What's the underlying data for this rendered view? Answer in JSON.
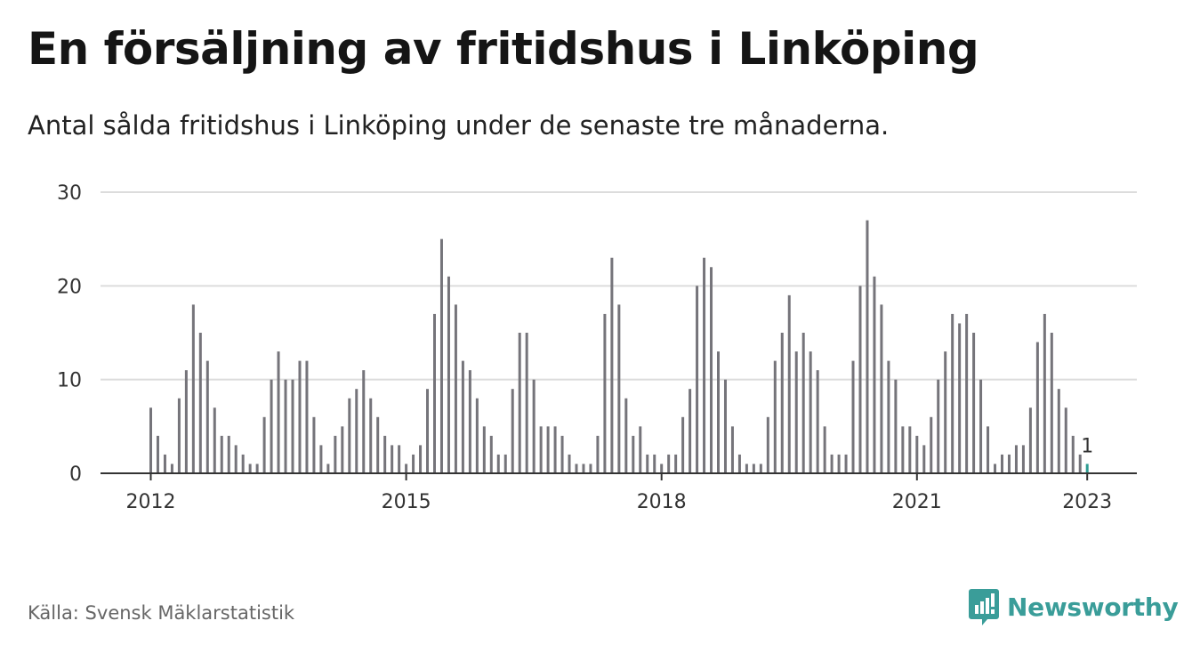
{
  "header": {
    "title": "En försäljning av fritidshus i Linköping",
    "subtitle": "Antal sålda fritidshus i Linköping under de senaste tre månaderna."
  },
  "footer": {
    "source": "Källa: Svensk Mäklarstatistik",
    "brand": "Newsworthy"
  },
  "colors": {
    "bar": "#75747a",
    "highlight": "#2e9c93",
    "grid": "#dcdcdc",
    "axis": "#333333",
    "brand": "#3a9d99"
  },
  "icons": {
    "brand_logo": "newsworthy-logo-icon"
  },
  "chart_data": {
    "type": "bar",
    "title": "En försäljning av fritidshus i Linköping",
    "subtitle": "Antal sålda fritidshus i Linköping under de senaste tre månaderna.",
    "xlabel": "",
    "ylabel": "",
    "ylim": [
      0,
      30
    ],
    "yticks": [
      0,
      10,
      20,
      30
    ],
    "xticks": [
      "2012",
      "2015",
      "2018",
      "2021",
      "2023"
    ],
    "grid": true,
    "legend": "none",
    "start_month": "2012-01",
    "end_month": "2023-01",
    "values": [
      7,
      4,
      2,
      1,
      8,
      11,
      18,
      15,
      12,
      7,
      4,
      4,
      3,
      2,
      1,
      1,
      6,
      10,
      13,
      10,
      10,
      12,
      12,
      6,
      3,
      1,
      4,
      5,
      8,
      9,
      11,
      8,
      6,
      4,
      3,
      3,
      1,
      2,
      3,
      9,
      17,
      25,
      21,
      18,
      12,
      11,
      8,
      5,
      4,
      2,
      2,
      9,
      15,
      15,
      10,
      5,
      5,
      5,
      4,
      2,
      1,
      1,
      1,
      4,
      17,
      23,
      18,
      8,
      4,
      5,
      2,
      2,
      1,
      2,
      2,
      6,
      9,
      20,
      23,
      22,
      13,
      10,
      5,
      2,
      1,
      1,
      1,
      6,
      12,
      15,
      19,
      13,
      15,
      13,
      11,
      5,
      2,
      2,
      2,
      12,
      20,
      27,
      21,
      18,
      12,
      10,
      5,
      5,
      4,
      3,
      6,
      10,
      13,
      17,
      16,
      17,
      15,
      10,
      5,
      1,
      2,
      2,
      3,
      3,
      7,
      14,
      17,
      15,
      9,
      7,
      4,
      2,
      1
    ],
    "annotations": [
      {
        "month": "2023-01",
        "value": 1,
        "text": "1"
      }
    ]
  }
}
